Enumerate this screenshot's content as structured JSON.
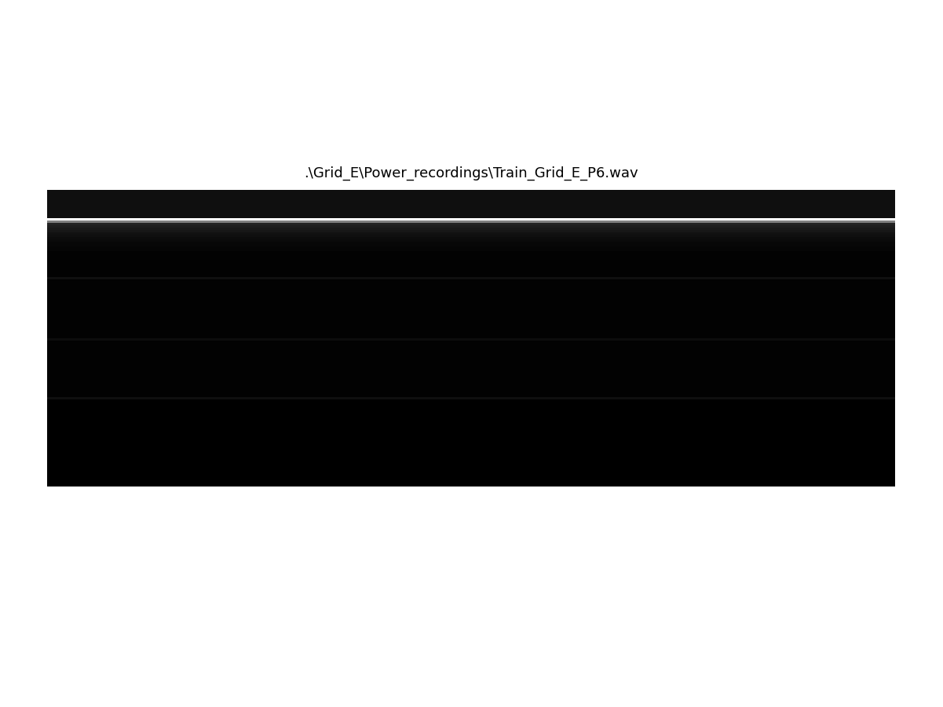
{
  "chart_data": {
    "type": "heatmap",
    "title": ".\\Grid_E\\Power_recordings\\Train_Grid_E_P6.wav",
    "color": "gray",
    "color_range": [
      0,
      1
    ],
    "tick_labels": false,
    "cells": [
      [
        0.06
      ],
      [
        0.06
      ],
      [
        0.06
      ],
      [
        0.06
      ],
      [
        0.06
      ],
      [
        0.06
      ],
      [
        0.06
      ],
      [
        0.06
      ],
      [
        0.06
      ],
      [
        0.06
      ],
      [
        0.06
      ],
      [
        0.06
      ],
      [
        1.0
      ],
      [
        0.5
      ],
      [
        0.14
      ],
      [
        0.12
      ],
      [
        0.1
      ],
      [
        0.09
      ],
      [
        0.07
      ],
      [
        0.06
      ],
      [
        0.05
      ],
      [
        0.04
      ],
      [
        0.03
      ],
      [
        0.03
      ],
      [
        0.02
      ],
      [
        0.02
      ],
      [
        0.01
      ],
      [
        0.01
      ],
      [
        0.01
      ],
      [
        0.01
      ],
      [
        0.01
      ],
      [
        0.01
      ],
      [
        0.01
      ],
      [
        0.01
      ],
      [
        0.01
      ],
      [
        0.01
      ],
      [
        0.01
      ],
      [
        0.06
      ],
      [
        0.01
      ],
      [
        0.01
      ],
      [
        0.01
      ],
      [
        0.01
      ],
      [
        0.01
      ],
      [
        0.01
      ],
      [
        0.01
      ],
      [
        0.01
      ],
      [
        0.01
      ],
      [
        0.01
      ],
      [
        0.01
      ],
      [
        0.01
      ],
      [
        0.01
      ],
      [
        0.01
      ],
      [
        0.01
      ],
      [
        0.01
      ],
      [
        0.01
      ],
      [
        0.01
      ],
      [
        0.01
      ],
      [
        0.01
      ],
      [
        0.01
      ],
      [
        0.01
      ],
      [
        0.01
      ],
      [
        0.01
      ],
      [
        0.01
      ],
      [
        0.05
      ],
      [
        0.01
      ],
      [
        0.01
      ],
      [
        0.01
      ],
      [
        0.01
      ],
      [
        0.01
      ],
      [
        0.01
      ],
      [
        0.01
      ],
      [
        0.01
      ],
      [
        0.01
      ],
      [
        0.01
      ],
      [
        0.01
      ],
      [
        0.01
      ],
      [
        0.01
      ],
      [
        0.01
      ],
      [
        0.01
      ],
      [
        0.01
      ],
      [
        0.01
      ],
      [
        0.01
      ],
      [
        0.01
      ],
      [
        0.01
      ],
      [
        0.01
      ],
      [
        0.01
      ],
      [
        0.01
      ],
      [
        0.01
      ],
      [
        0.06
      ],
      [
        0.0
      ],
      [
        0.0
      ],
      [
        0.0
      ],
      [
        0.0
      ],
      [
        0.0
      ],
      [
        0.0
      ],
      [
        0.0
      ],
      [
        0.0
      ],
      [
        0.0
      ],
      [
        0.0
      ],
      [
        0.0
      ],
      [
        0.0
      ],
      [
        0.0
      ],
      [
        0.0
      ],
      [
        0.0
      ],
      [
        0.0
      ],
      [
        0.0
      ],
      [
        0.0
      ],
      [
        0.0
      ],
      [
        0.0
      ],
      [
        0.0
      ],
      [
        0.0
      ],
      [
        0.0
      ],
      [
        0.0
      ],
      [
        0.0
      ],
      [
        0.0
      ],
      [
        0.0
      ],
      [
        0.0
      ],
      [
        0.0
      ],
      [
        0.0
      ],
      [
        0.0
      ],
      [
        0.0
      ],
      [
        0.0
      ],
      [
        0.0
      ],
      [
        0.0
      ],
      [
        0.0
      ],
      [
        0.0
      ]
    ]
  }
}
